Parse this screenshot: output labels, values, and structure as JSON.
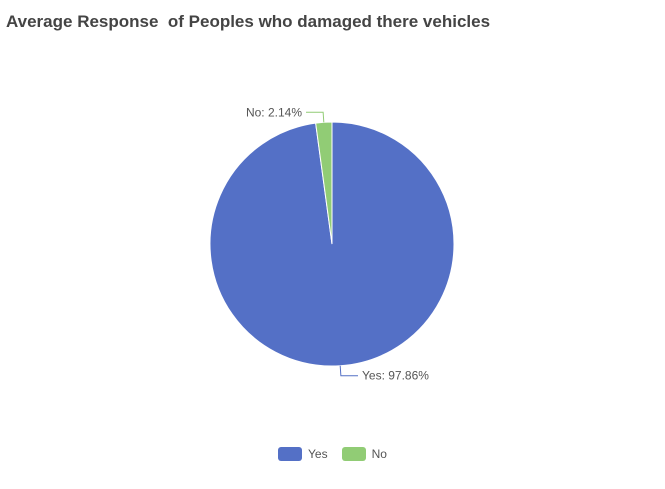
{
  "chart_data": {
    "type": "pie",
    "title": "Average Response  of Peoples who damaged there vehicles",
    "slices": [
      {
        "name": "Yes",
        "value": 97.86,
        "label": "Yes: 97.86%",
        "color": "#5470c6"
      },
      {
        "name": "No",
        "value": 2.14,
        "label": "No: 2.14%",
        "color": "#91cc75"
      }
    ],
    "legend_position": "bottom-center"
  }
}
